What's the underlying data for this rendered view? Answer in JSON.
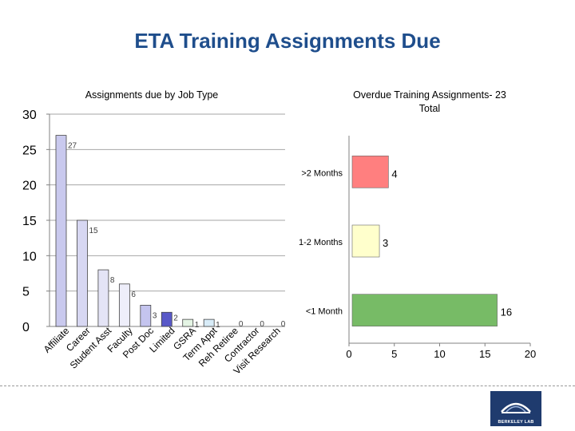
{
  "page": {
    "title": "ETA Training Assignments Due",
    "logo_text": "BERKELEY LAB"
  },
  "chart_data": [
    {
      "type": "bar",
      "title": "Assignments due by Job Type",
      "xlabel": "",
      "ylabel": "",
      "ylim": [
        0,
        30
      ],
      "yticks": [
        0,
        5,
        10,
        15,
        20,
        25,
        30
      ],
      "grid": true,
      "categories": [
        "Affiliate",
        "Career",
        "Student Asst",
        "Faculty",
        "Post Doc",
        "Limited",
        "GSRA",
        "Term Appt",
        "Reh Retiree",
        "Contractor",
        "Visit Research"
      ],
      "values": [
        27,
        15,
        8,
        6,
        3,
        2,
        1,
        1,
        0,
        0,
        0
      ],
      "colors": [
        "#c9c9ee",
        "#d7d7f2",
        "#e4e4f6",
        "#eeeefa",
        "#c4c4ee",
        "#5858c8",
        "#e4f4e4",
        "#d8ecf8",
        "#ffffff",
        "#ffffff",
        "#ffffff"
      ]
    },
    {
      "type": "bar",
      "orientation": "horizontal",
      "title": "Overdue Training Assignments- 23 Total",
      "xlabel": "",
      "ylabel": "",
      "xlim": [
        0,
        20
      ],
      "xticks": [
        0,
        5,
        10,
        15,
        20
      ],
      "grid": false,
      "categories": [
        ">2 Months",
        "1-2 Months",
        "<1 Month"
      ],
      "values": [
        4,
        3,
        16
      ],
      "colors": [
        "#ff7f7f",
        "#ffffcc",
        "#77bb66"
      ]
    }
  ]
}
